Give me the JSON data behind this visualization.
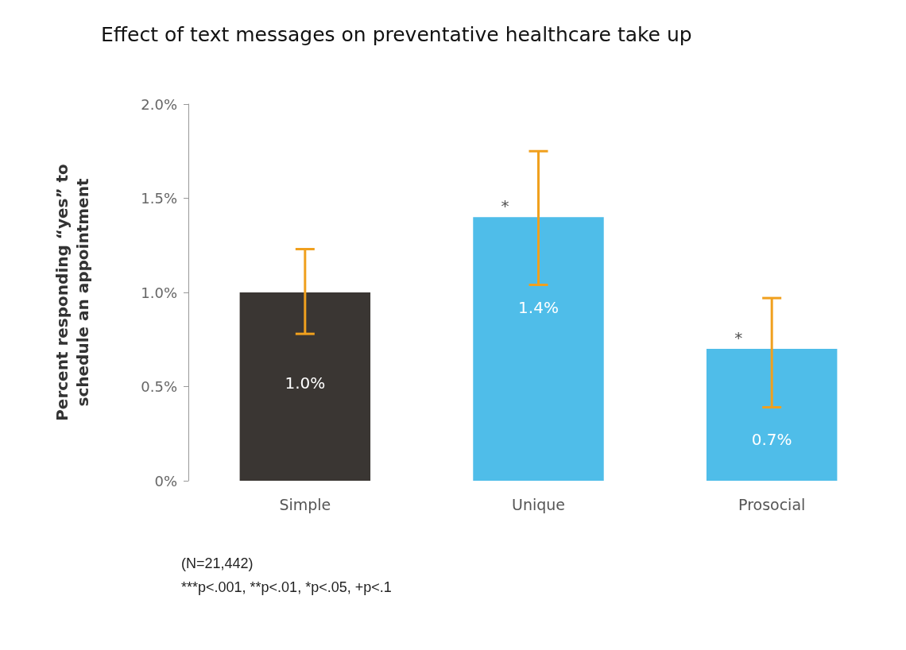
{
  "chart_data": {
    "type": "bar",
    "title": "Effect of text messages on preventative healthcare take up",
    "ylabel": "Percent responding “yes” to\nschedule an appointment",
    "categories": [
      "Simple",
      "Unique",
      "Prosocial"
    ],
    "values": [
      1.0,
      1.4,
      0.7
    ],
    "colors": [
      "#3a3633",
      "#4fbde9",
      "#4fbde9"
    ],
    "value_labels": [
      "1.0%",
      "1.4%",
      "0.7%"
    ],
    "errors": [
      [
        0.78,
        1.23
      ],
      [
        1.04,
        1.75
      ],
      [
        0.39,
        0.97
      ]
    ],
    "ylim": [
      0,
      2
    ],
    "yticks": [
      {
        "value": 0,
        "label": "0%"
      },
      {
        "value": 0.5,
        "label": "0.5%"
      },
      {
        "value": 1,
        "label": "1.0%"
      },
      {
        "value": 1.5,
        "label": "1.5%"
      },
      {
        "value": 2,
        "label": "2.0%"
      }
    ],
    "grid": false,
    "annotations": [
      {
        "text": "*",
        "x": "Unique",
        "y": 1.43
      },
      {
        "text": "*",
        "x": "Prosocial",
        "y": 0.73
      },
      "(N=21,442)",
      "***p<.001, **p<.01, *p<.05, +p<.1"
    ]
  }
}
